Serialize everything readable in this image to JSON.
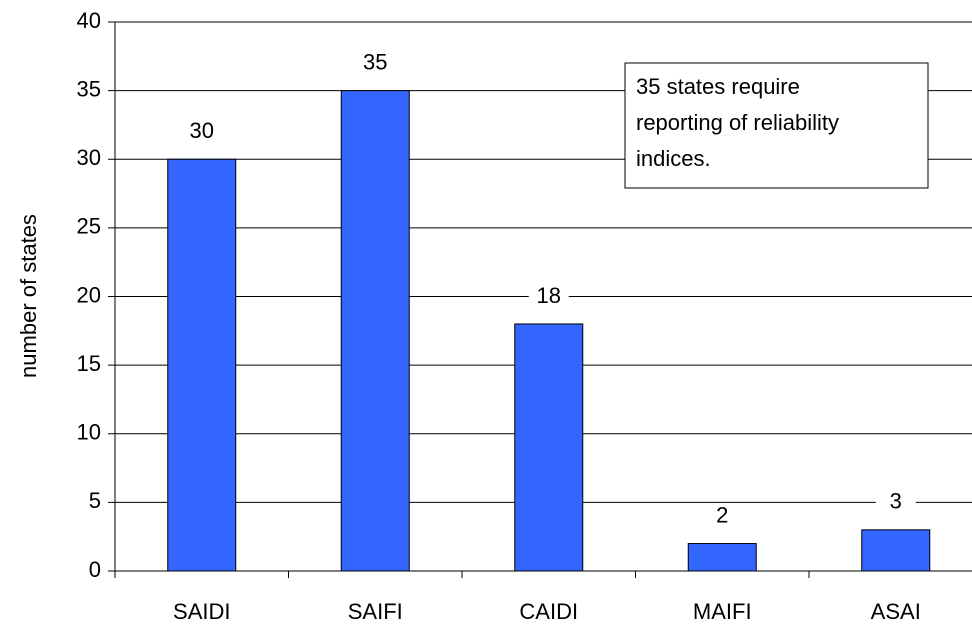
{
  "chart_data": {
    "type": "bar",
    "y_axis_label": "number of states",
    "categories": [
      "SAIDI",
      "SAIFI",
      "CAIDI",
      "MAIFI",
      "ASAI"
    ],
    "values": [
      30,
      35,
      18,
      2,
      3
    ],
    "color": "#3366ff",
    "ylim": [
      0,
      40
    ],
    "yticks": [
      0,
      5,
      10,
      15,
      20,
      25,
      30,
      35,
      40
    ],
    "grid": true,
    "annotation": [
      "35 states require",
      "reporting of reliability",
      "indices."
    ]
  }
}
